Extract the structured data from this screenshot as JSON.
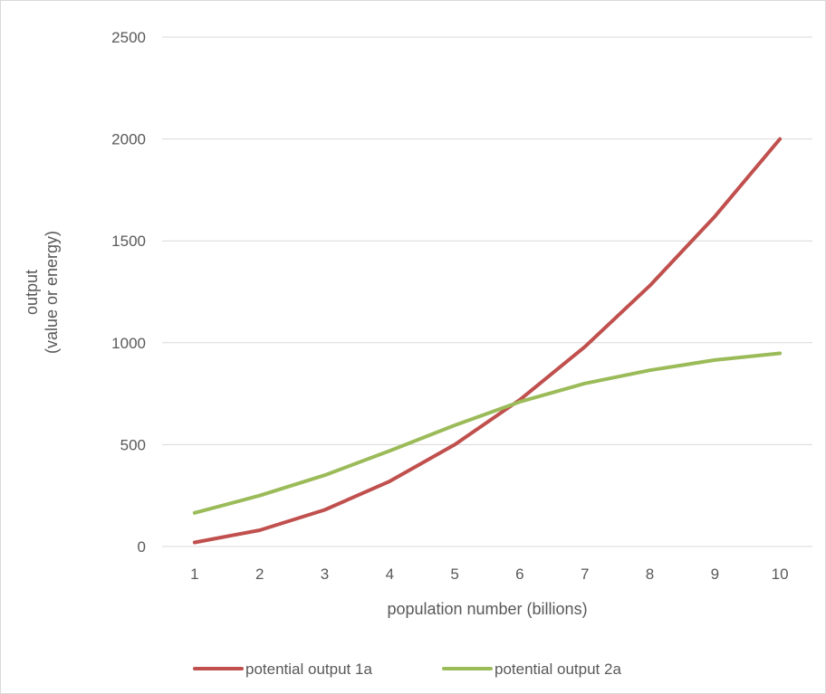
{
  "chart_data": {
    "type": "line",
    "title": "",
    "xlabel": "population number (billions)",
    "ylabel_lines": [
      "output",
      "(value or energy)"
    ],
    "x": [
      1,
      2,
      3,
      4,
      5,
      6,
      7,
      8,
      9,
      10
    ],
    "categories": [
      "1",
      "2",
      "3",
      "4",
      "5",
      "6",
      "7",
      "8",
      "9",
      "10"
    ],
    "ylim": [
      0,
      2500
    ],
    "yticks": [
      0,
      500,
      1000,
      1500,
      2000,
      2500
    ],
    "ytick_labels": [
      "0",
      "500",
      "1000",
      "1500",
      "2000",
      "2500"
    ],
    "grid": true,
    "legend_position": "bottom",
    "series": [
      {
        "name": "potential output 1a",
        "color": "#c0504d",
        "values": [
          20,
          80,
          180,
          320,
          500,
          720,
          980,
          1280,
          1620,
          2000
        ]
      },
      {
        "name": "potential output 2a",
        "color": "#9bbb59",
        "values": [
          165,
          250,
          350,
          470,
          595,
          710,
          800,
          865,
          915,
          948
        ]
      }
    ]
  }
}
